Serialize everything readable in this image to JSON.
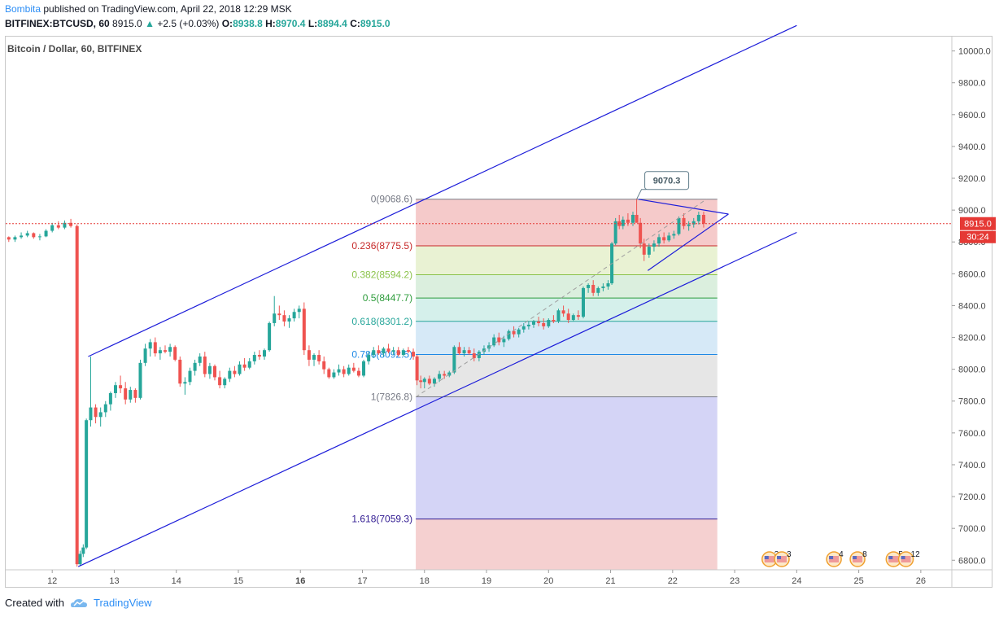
{
  "header": {
    "author": "Bombita",
    "publish_text": "published on TradingView.com, April 22, 2018 12:29 MSK",
    "symbol": "BITFINEX:BTCUSD, 60",
    "last": "8915.0",
    "change_arrow": "▲",
    "change": "+2.5 (+0.03%)",
    "o_label": "O:",
    "o_value": "8938.8",
    "h_label": "H:",
    "h_value": "8970.4",
    "l_label": "L:",
    "l_value": "8894.4",
    "c_label": "C:",
    "c_value": "8915.0"
  },
  "footer": {
    "created_with": "Created with",
    "brand": "TradingView"
  },
  "chart_data": {
    "type": "candlestick",
    "title": "Bitcoin / Dollar, 60, BITFINEX",
    "x_tick_labels": [
      "12",
      "13",
      "14",
      "15",
      "16",
      "17",
      "18",
      "19",
      "20",
      "21",
      "22",
      "23",
      "24",
      "25",
      "26"
    ],
    "x_ticks_bold": [
      "16"
    ],
    "y_tick_labels": [
      "6800.0",
      "7000.0",
      "7200.0",
      "7400.0",
      "7600.0",
      "7800.0",
      "8000.0",
      "8200.0",
      "8400.0",
      "8600.0",
      "8800.0",
      "9000.0",
      "9200.0",
      "9400.0",
      "9600.0",
      "9800.0",
      "10000.0"
    ],
    "ylim": [
      6740,
      10090
    ],
    "xlim": [
      11.25,
      26.5
    ],
    "current_price": 8915.0,
    "current_price_label": "8915.0",
    "countdown_label": "30:24",
    "callout_value": "9070.3",
    "colors": {
      "up": "#26a69a",
      "down": "#ef5350",
      "channel": "#1c1cd9",
      "price_line": "#e53935"
    },
    "fib_levels": [
      {
        "label": "0(9068.6)",
        "value": 9068.6,
        "color": "#787b86"
      },
      {
        "label": "0.236(8775.5)",
        "value": 8775.5,
        "color": "#c62828"
      },
      {
        "label": "0.382(8594.2)",
        "value": 8594.2,
        "color": "#8bc34a"
      },
      {
        "label": "0.5(8447.7)",
        "value": 8447.7,
        "color": "#2e9c3c"
      },
      {
        "label": "0.618(8301.2)",
        "value": 8301.2,
        "color": "#26a69a"
      },
      {
        "label": "0.786(8092.5)",
        "value": 8092.5,
        "color": "#1e88e5"
      },
      {
        "label": "1(7826.8)",
        "value": 7826.8,
        "color": "#787b86"
      },
      {
        "label": "1.618(7059.3)",
        "value": 7059.3,
        "color": "#311b92"
      }
    ],
    "fib_x_range": [
      17.86,
      22.72
    ],
    "fib_bands": [
      {
        "from": 9068.6,
        "to": 8775.5,
        "color": "#f2b8b8"
      },
      {
        "from": 8775.5,
        "to": 8594.2,
        "color": "#e2eec4"
      },
      {
        "from": 8594.2,
        "to": 8447.7,
        "color": "#cfead3"
      },
      {
        "from": 8447.7,
        "to": 8301.2,
        "color": "#c7ebe4"
      },
      {
        "from": 8301.2,
        "to": 8092.5,
        "color": "#c8e1f4"
      },
      {
        "from": 8092.5,
        "to": 7826.8,
        "color": "#dddddd"
      },
      {
        "from": 7826.8,
        "to": 7059.3,
        "color": "#c5c6f3"
      },
      {
        "from": 7059.3,
        "to": 6740,
        "color": "#f2c0c0"
      }
    ],
    "channel_lines": [
      {
        "name": "upper",
        "points": [
          [
            12.58,
            8080
          ],
          [
            24.0,
            10160
          ]
        ]
      },
      {
        "name": "lower",
        "points": [
          [
            12.42,
            6760
          ],
          [
            24.0,
            8860
          ]
        ]
      },
      {
        "name": "wedge-top",
        "points": [
          [
            21.45,
            9068
          ],
          [
            22.9,
            8975
          ]
        ]
      },
      {
        "name": "wedge-bottom",
        "points": [
          [
            21.6,
            8620
          ],
          [
            22.9,
            8975
          ]
        ]
      }
    ],
    "dashed_trend": [
      [
        17.86,
        7825
      ],
      [
        22.55,
        9070
      ]
    ],
    "ohlc": [
      [
        11.3,
        8830,
        8835,
        8800,
        8815
      ],
      [
        11.4,
        8815,
        8840,
        8800,
        8830
      ],
      [
        11.5,
        8830,
        8860,
        8820,
        8840
      ],
      [
        11.6,
        8840,
        8870,
        8830,
        8855
      ],
      [
        11.7,
        8855,
        8860,
        8820,
        8830
      ],
      [
        11.8,
        8830,
        8850,
        8810,
        8835
      ],
      [
        11.9,
        8835,
        8880,
        8830,
        8870
      ],
      [
        12.0,
        8870,
        8920,
        8860,
        8905
      ],
      [
        12.1,
        8905,
        8930,
        8880,
        8890
      ],
      [
        12.2,
        8890,
        8935,
        8880,
        8920
      ],
      [
        12.3,
        8920,
        8945,
        8890,
        8900
      ],
      [
        12.4,
        8900,
        8910,
        6760,
        6775
      ],
      [
        12.45,
        6775,
        6860,
        6765,
        6840
      ],
      [
        12.5,
        6840,
        6900,
        6820,
        6880
      ],
      [
        12.55,
        6880,
        7690,
        6870,
        7680
      ],
      [
        12.62,
        7680,
        8080,
        7640,
        7760
      ],
      [
        12.7,
        7760,
        7780,
        7660,
        7700
      ],
      [
        12.78,
        7700,
        7760,
        7640,
        7730
      ],
      [
        12.86,
        7730,
        7800,
        7700,
        7780
      ],
      [
        12.94,
        7780,
        7860,
        7740,
        7850
      ],
      [
        13.02,
        7850,
        7920,
        7820,
        7900
      ],
      [
        13.1,
        7900,
        7960,
        7850,
        7880
      ],
      [
        13.18,
        7880,
        7920,
        7780,
        7810
      ],
      [
        13.26,
        7810,
        7890,
        7790,
        7870
      ],
      [
        13.34,
        7870,
        7880,
        7790,
        7820
      ],
      [
        13.42,
        7820,
        8060,
        7810,
        8040
      ],
      [
        13.5,
        8040,
        8160,
        8020,
        8130
      ],
      [
        13.58,
        8130,
        8190,
        8080,
        8170
      ],
      [
        13.66,
        8170,
        8200,
        8080,
        8100
      ],
      [
        13.74,
        8100,
        8140,
        8060,
        8120
      ],
      [
        13.82,
        8120,
        8150,
        8100,
        8110
      ],
      [
        13.9,
        8110,
        8160,
        8080,
        8140
      ],
      [
        13.98,
        8140,
        8150,
        8050,
        8060
      ],
      [
        14.06,
        8060,
        8080,
        7890,
        7910
      ],
      [
        14.14,
        7910,
        7950,
        7840,
        7920
      ],
      [
        14.22,
        7920,
        8010,
        7900,
        7990
      ],
      [
        14.3,
        7990,
        8060,
        7960,
        8040
      ],
      [
        14.38,
        8040,
        8100,
        8020,
        8080
      ],
      [
        14.46,
        8080,
        8110,
        7950,
        7970
      ],
      [
        14.54,
        7970,
        8040,
        7940,
        8020
      ],
      [
        14.62,
        8020,
        8030,
        7930,
        7950
      ],
      [
        14.7,
        7950,
        7990,
        7880,
        7900
      ],
      [
        14.78,
        7900,
        7950,
        7880,
        7940
      ],
      [
        14.86,
        7940,
        8010,
        7920,
        7990
      ],
      [
        14.94,
        7990,
        8020,
        7950,
        7970
      ],
      [
        15.02,
        7970,
        8050,
        7960,
        8030
      ],
      [
        15.1,
        8030,
        8070,
        7990,
        8010
      ],
      [
        15.18,
        8010,
        8070,
        8000,
        8050
      ],
      [
        15.26,
        8050,
        8110,
        8030,
        8090
      ],
      [
        15.34,
        8090,
        8120,
        8060,
        8080
      ],
      [
        15.42,
        8080,
        8130,
        8060,
        8120
      ],
      [
        15.5,
        8120,
        8300,
        8110,
        8290
      ],
      [
        15.58,
        8290,
        8460,
        8270,
        8350
      ],
      [
        15.66,
        8350,
        8400,
        8310,
        8340
      ],
      [
        15.74,
        8340,
        8370,
        8270,
        8300
      ],
      [
        15.82,
        8300,
        8340,
        8260,
        8320
      ],
      [
        15.9,
        8320,
        8380,
        8300,
        8360
      ],
      [
        15.98,
        8360,
        8400,
        8320,
        8380
      ],
      [
        16.06,
        8380,
        8420,
        8090,
        8120
      ],
      [
        16.14,
        8120,
        8150,
        8020,
        8060
      ],
      [
        16.22,
        8060,
        8100,
        8020,
        8090
      ],
      [
        16.3,
        8090,
        8120,
        8030,
        8050
      ],
      [
        16.38,
        8050,
        8080,
        7970,
        8000
      ],
      [
        16.46,
        8000,
        8010,
        7940,
        7950
      ],
      [
        16.54,
        7950,
        8000,
        7940,
        7980
      ],
      [
        16.62,
        7980,
        8030,
        7960,
        8000
      ],
      [
        16.7,
        8000,
        8020,
        7950,
        7970
      ],
      [
        16.78,
        7970,
        8030,
        7960,
        8010
      ],
      [
        16.86,
        8010,
        8040,
        7980,
        7990
      ],
      [
        16.94,
        7990,
        8010,
        7950,
        7960
      ],
      [
        17.02,
        7960,
        8060,
        7950,
        8050
      ],
      [
        17.1,
        8050,
        8110,
        8030,
        8090
      ],
      [
        17.18,
        8090,
        8140,
        8070,
        8120
      ],
      [
        17.26,
        8120,
        8150,
        8090,
        8100
      ],
      [
        17.34,
        8100,
        8140,
        8080,
        8130
      ],
      [
        17.42,
        8130,
        8160,
        8100,
        8110
      ],
      [
        17.5,
        8110,
        8140,
        8090,
        8120
      ],
      [
        17.58,
        8120,
        8140,
        8080,
        8090
      ],
      [
        17.66,
        8090,
        8130,
        8080,
        8120
      ],
      [
        17.74,
        8120,
        8140,
        8100,
        8110
      ],
      [
        17.82,
        8110,
        8130,
        8060,
        8080
      ],
      [
        17.88,
        8080,
        8090,
        7900,
        7930
      ],
      [
        17.94,
        7930,
        7960,
        7880,
        7920
      ],
      [
        18.0,
        7920,
        7950,
        7880,
        7940
      ],
      [
        18.08,
        7940,
        7960,
        7900,
        7910
      ],
      [
        18.16,
        7910,
        7950,
        7890,
        7940
      ],
      [
        18.24,
        7940,
        7990,
        7920,
        7970
      ],
      [
        18.32,
        7970,
        7990,
        7940,
        7960
      ],
      [
        18.4,
        7960,
        7990,
        7950,
        7980
      ],
      [
        18.48,
        7980,
        8150,
        7970,
        8140
      ],
      [
        18.56,
        8140,
        8170,
        8090,
        8100
      ],
      [
        18.64,
        8100,
        8140,
        8080,
        8120
      ],
      [
        18.72,
        8120,
        8140,
        8090,
        8100
      ],
      [
        18.8,
        8100,
        8130,
        8050,
        8070
      ],
      [
        18.88,
        8070,
        8120,
        8050,
        8110
      ],
      [
        18.96,
        8110,
        8150,
        8090,
        8130
      ],
      [
        19.04,
        8130,
        8170,
        8110,
        8150
      ],
      [
        19.12,
        8150,
        8220,
        8140,
        8200
      ],
      [
        19.2,
        8200,
        8230,
        8150,
        8170
      ],
      [
        19.28,
        8170,
        8210,
        8140,
        8190
      ],
      [
        19.36,
        8190,
        8250,
        8180,
        8240
      ],
      [
        19.44,
        8240,
        8270,
        8200,
        8220
      ],
      [
        19.52,
        8220,
        8260,
        8200,
        8250
      ],
      [
        19.6,
        8250,
        8290,
        8230,
        8270
      ],
      [
        19.68,
        8270,
        8300,
        8250,
        8280
      ],
      [
        19.76,
        8280,
        8310,
        8260,
        8300
      ],
      [
        19.84,
        8300,
        8330,
        8270,
        8290
      ],
      [
        19.92,
        8290,
        8320,
        8250,
        8270
      ],
      [
        20.0,
        8270,
        8320,
        8260,
        8310
      ],
      [
        20.08,
        8310,
        8340,
        8290,
        8300
      ],
      [
        20.16,
        8300,
        8380,
        8290,
        8370
      ],
      [
        20.24,
        8370,
        8400,
        8330,
        8350
      ],
      [
        20.32,
        8350,
        8380,
        8290,
        8310
      ],
      [
        20.4,
        8310,
        8350,
        8300,
        8340
      ],
      [
        20.48,
        8340,
        8370,
        8310,
        8330
      ],
      [
        20.56,
        8330,
        8520,
        8320,
        8510
      ],
      [
        20.64,
        8510,
        8540,
        8480,
        8530
      ],
      [
        20.72,
        8530,
        8560,
        8460,
        8480
      ],
      [
        20.8,
        8480,
        8520,
        8460,
        8510
      ],
      [
        20.88,
        8510,
        8540,
        8490,
        8520
      ],
      [
        20.96,
        8520,
        8560,
        8500,
        8540
      ],
      [
        21.02,
        8540,
        8800,
        8530,
        8790
      ],
      [
        21.08,
        8790,
        8950,
        8780,
        8930
      ],
      [
        21.14,
        8930,
        8970,
        8880,
        8900
      ],
      [
        21.2,
        8900,
        8960,
        8880,
        8940
      ],
      [
        21.28,
        8940,
        8980,
        8900,
        8920
      ],
      [
        21.36,
        8920,
        8990,
        8900,
        8970
      ],
      [
        21.42,
        8970,
        9070,
        8950,
        8920
      ],
      [
        21.48,
        8920,
        8950,
        8760,
        8790
      ],
      [
        21.54,
        8790,
        8820,
        8680,
        8720
      ],
      [
        21.62,
        8720,
        8790,
        8700,
        8770
      ],
      [
        21.7,
        8770,
        8810,
        8740,
        8790
      ],
      [
        21.78,
        8790,
        8850,
        8770,
        8830
      ],
      [
        21.86,
        8830,
        8860,
        8790,
        8810
      ],
      [
        21.94,
        8810,
        8860,
        8800,
        8840
      ],
      [
        22.02,
        8840,
        8870,
        8820,
        8850
      ],
      [
        22.1,
        8850,
        8960,
        8840,
        8950
      ],
      [
        22.18,
        8950,
        8980,
        8880,
        8900
      ],
      [
        22.26,
        8900,
        8930,
        8870,
        8910
      ],
      [
        22.34,
        8910,
        8950,
        8890,
        8930
      ],
      [
        22.42,
        8930,
        8990,
        8910,
        8970
      ],
      [
        22.5,
        8970,
        8990,
        8890,
        8915
      ]
    ],
    "event_markers": [
      {
        "x": 23.56,
        "count": "3"
      },
      {
        "x": 23.76,
        "count": "3"
      },
      {
        "x": 24.6,
        "count": "4"
      },
      {
        "x": 24.98,
        "count": "8"
      },
      {
        "x": 25.56,
        "count": "5"
      },
      {
        "x": 25.76,
        "count": "12"
      }
    ]
  }
}
